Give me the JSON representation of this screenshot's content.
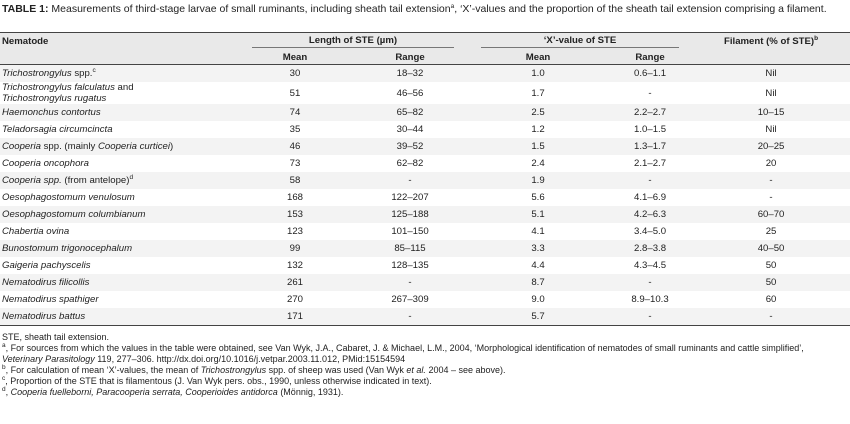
{
  "caption": [
    [
      "TABLE 1:",
      "b"
    ],
    [
      " Measurements of third-stage larvae of small ruminants, including sheath tail extension",
      "n"
    ],
    [
      "a",
      "s"
    ],
    [
      ", ‘X’-values and the proportion of the sheath tail extension comprising a filament.",
      "n"
    ]
  ],
  "table": {
    "header": {
      "nematode": "Nematode",
      "length": "Length of STE (µm)",
      "xvalue": "‘X’-value of STE",
      "filament": [
        [
          "Filament (% of STE)",
          "n"
        ],
        [
          "b",
          "s"
        ]
      ],
      "sub": [
        "Mean",
        "Range",
        "Mean",
        "Range"
      ]
    },
    "rows": [
      [
        [
          [
            "Trichostrongylus",
            "i"
          ],
          [
            " spp.",
            "n"
          ],
          [
            "c",
            "s"
          ]
        ],
        "30",
        "18–32",
        "1.0",
        "0.6–1.1",
        "Nil"
      ],
      [
        [
          [
            "Trichostrongylus falculatus",
            "i"
          ],
          [
            " and ",
            "n"
          ],
          [
            "Trichostrongylus rugatus",
            "i"
          ]
        ],
        "51",
        "46–56",
        "1.7",
        "-",
        "Nil"
      ],
      [
        [
          [
            "Haemonchus contortus",
            "i"
          ]
        ],
        "74",
        "65–82",
        "2.5",
        "2.2–2.7",
        "10–15"
      ],
      [
        [
          [
            "Teladorsagia circumcincta",
            "i"
          ]
        ],
        "35",
        "30–44",
        "1.2",
        "1.0–1.5",
        "Nil"
      ],
      [
        [
          [
            "Cooperia",
            "i"
          ],
          [
            " spp. (mainly ",
            "n"
          ],
          [
            "Cooperia curticei",
            "i"
          ],
          [
            ")",
            "n"
          ]
        ],
        "46",
        "39–52",
        "1.5",
        "1.3–1.7",
        "20–25"
      ],
      [
        [
          [
            "Cooperia oncophora",
            "i"
          ]
        ],
        "73",
        "62–82",
        "2.4",
        "2.1–2.7",
        "20"
      ],
      [
        [
          [
            "Cooperia spp.",
            "i"
          ],
          [
            " (from antelope)",
            "n"
          ],
          [
            "d",
            "s"
          ]
        ],
        "58",
        "-",
        "1.9",
        "-",
        "-"
      ],
      [
        [
          [
            "Oesophagostomum venulosum",
            "i"
          ]
        ],
        "168",
        "122–207",
        "5.6",
        "4.1–6.9",
        "-"
      ],
      [
        [
          [
            "Oesophagostomum columbianum",
            "i"
          ]
        ],
        "153",
        "125–188",
        "5.1",
        "4.2–6.3",
        "60–70"
      ],
      [
        [
          [
            "Chabertia ovina",
            "i"
          ]
        ],
        "123",
        "101–150",
        "4.1",
        "3.4–5.0",
        "25"
      ],
      [
        [
          [
            "Bunostomum trigonocephalum",
            "i"
          ]
        ],
        "99",
        "85–115",
        "3.3",
        "2.8–3.8",
        "40–50"
      ],
      [
        [
          [
            "Gaigeria pachyscelis",
            "i"
          ]
        ],
        "132",
        "128–135",
        "4.4",
        "4.3–4.5",
        "50"
      ],
      [
        [
          [
            "Nematodirus filicollis",
            "i"
          ]
        ],
        "261",
        "-",
        "8.7",
        "-",
        "50"
      ],
      [
        [
          [
            "Nematodirus spathiger",
            "i"
          ]
        ],
        "270",
        "267–309",
        "9.0",
        "8.9–10.3",
        "60"
      ],
      [
        [
          [
            "Nematodirus battus",
            "i"
          ]
        ],
        "171",
        "-",
        "5.7",
        "-",
        "-"
      ]
    ]
  },
  "footnotes": [
    [
      [
        "STE, sheath tail extension.",
        "n"
      ]
    ],
    [
      [
        "a",
        "s"
      ],
      [
        ", For sources from which the values in the table were obtained, see Van Wyk, J.A., Cabaret, J. & Michael, L.M., 2004, ‘Morphological identification of nematodes of small ruminants and cattle simplified’, ",
        "n"
      ],
      [
        "Veterinary Parasitology",
        "i"
      ],
      [
        " 119, 277–306. http://dx.doi.org/10.1016/j.vetpar.2003.11.012, PMid:15154594",
        "n"
      ]
    ],
    [
      [
        "b",
        "s"
      ],
      [
        ", For calculation of mean ‘X’-values, the mean of ",
        "n"
      ],
      [
        "Trichostrongylus",
        "i"
      ],
      [
        " spp. of sheep was used (Van Wyk ",
        "n"
      ],
      [
        "et al.",
        "i"
      ],
      [
        " 2004 – see above).",
        "n"
      ]
    ],
    [
      [
        "c",
        "s"
      ],
      [
        ", Proportion of the STE that is filamentous (J. Van Wyk pers. obs., 1990, unless otherwise indicated in text).",
        "n"
      ]
    ],
    [
      [
        "d",
        "s"
      ],
      [
        ", ",
        "n"
      ],
      [
        "Cooperia fuelleborni, Paracooperia serrata, Cooperioides antidorca",
        "i"
      ],
      [
        " (Mönnig, 1931).",
        "n"
      ]
    ]
  ]
}
